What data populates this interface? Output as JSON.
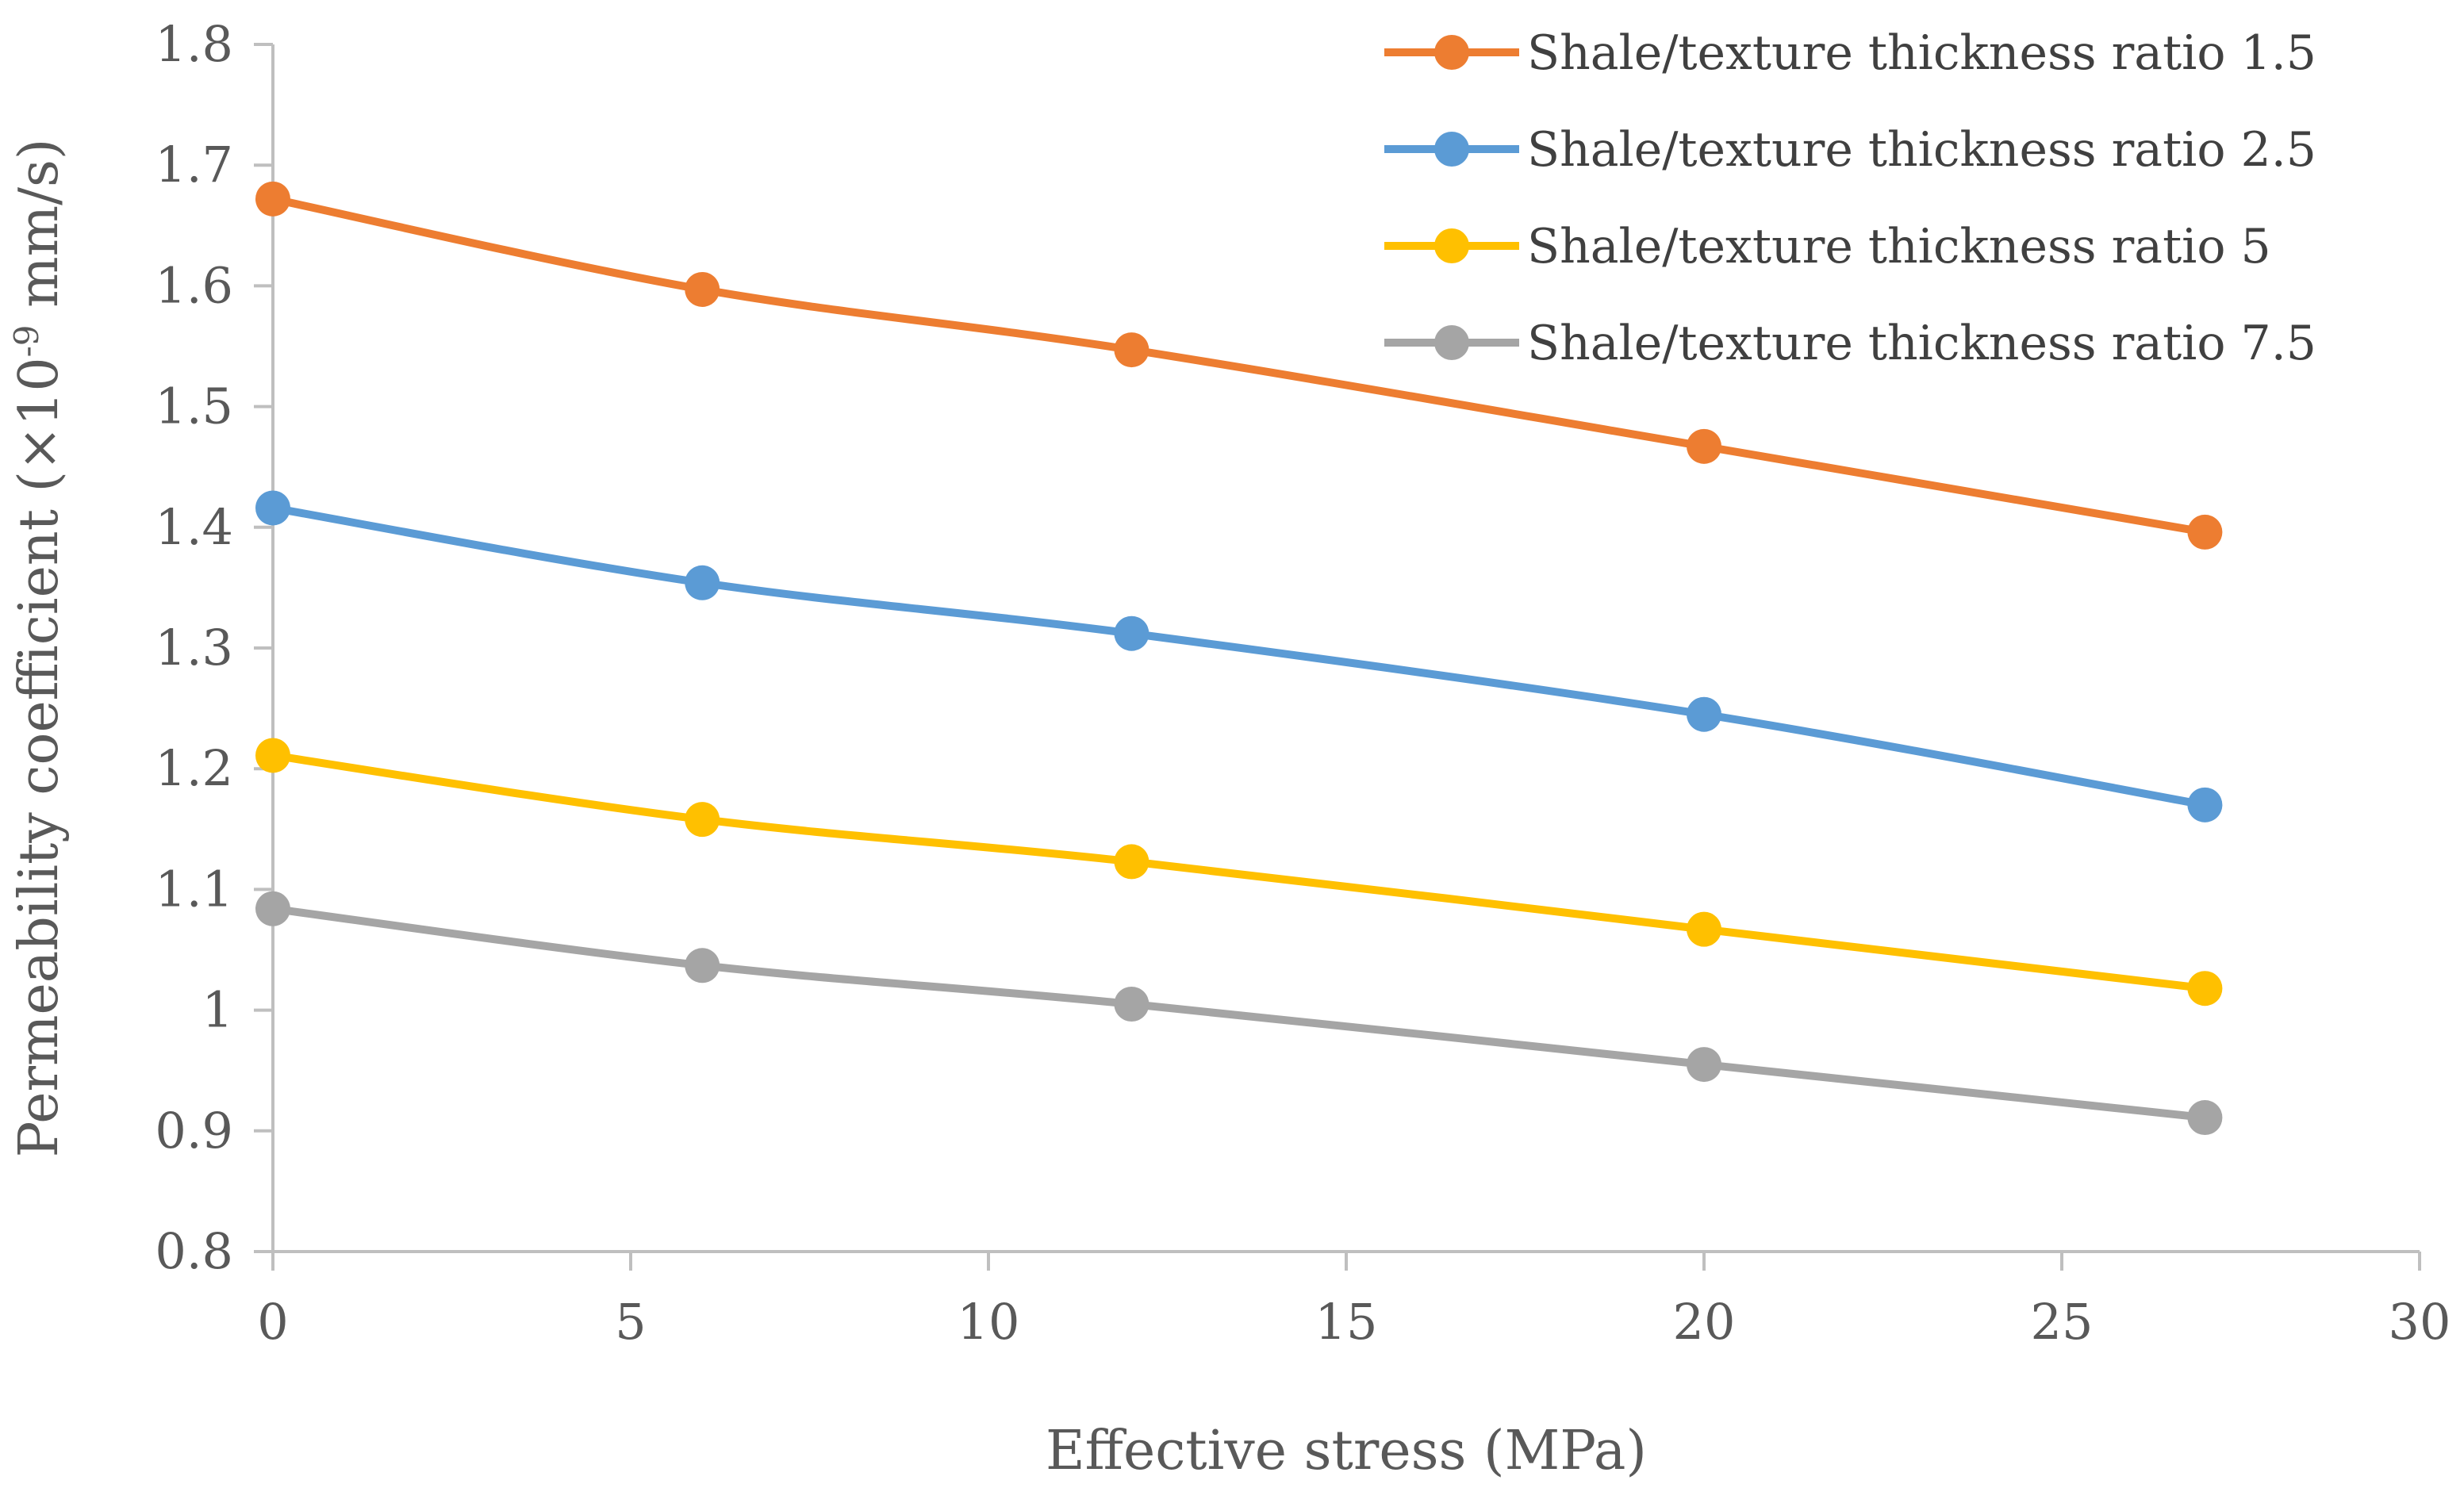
{
  "chart_data": {
    "type": "line",
    "title": "",
    "xlabel": "Effective stress (MPa)",
    "ylabel": {
      "main": "Permeability coefficient (×10",
      "exponent": "-9",
      "unit": " mm/s)"
    },
    "xlim": [
      0,
      30
    ],
    "ylim": [
      0.8,
      1.8
    ],
    "x_ticks": [
      "0",
      "5",
      "10",
      "15",
      "20",
      "25",
      "30"
    ],
    "y_ticks": [
      "0.8",
      "0.9",
      "1",
      "1.1",
      "1.2",
      "1.3",
      "1.4",
      "1.5",
      "1.6",
      "1.7",
      "1.8"
    ],
    "grid": false,
    "legend_position": "top-right",
    "x": [
      0,
      6,
      12,
      20,
      27
    ],
    "series": [
      {
        "name": "Shale/texture thickness ratio 1.5",
        "color": "#ED7D31",
        "values": [
          1.672,
          1.597,
          1.547,
          1.467,
          1.396
        ]
      },
      {
        "name": "Shale/texture thickness ratio 2.5",
        "color": "#5B9BD5",
        "values": [
          1.416,
          1.354,
          1.312,
          1.245,
          1.17
        ]
      },
      {
        "name": "Shale/texture thickness ratio 5",
        "color": "#FFC000",
        "values": [
          1.211,
          1.158,
          1.123,
          1.067,
          1.018
        ]
      },
      {
        "name": "Shale/texture thickness ratio 7.5",
        "color": "#A5A5A5",
        "values": [
          1.084,
          1.037,
          1.005,
          0.955,
          0.911
        ]
      }
    ]
  }
}
